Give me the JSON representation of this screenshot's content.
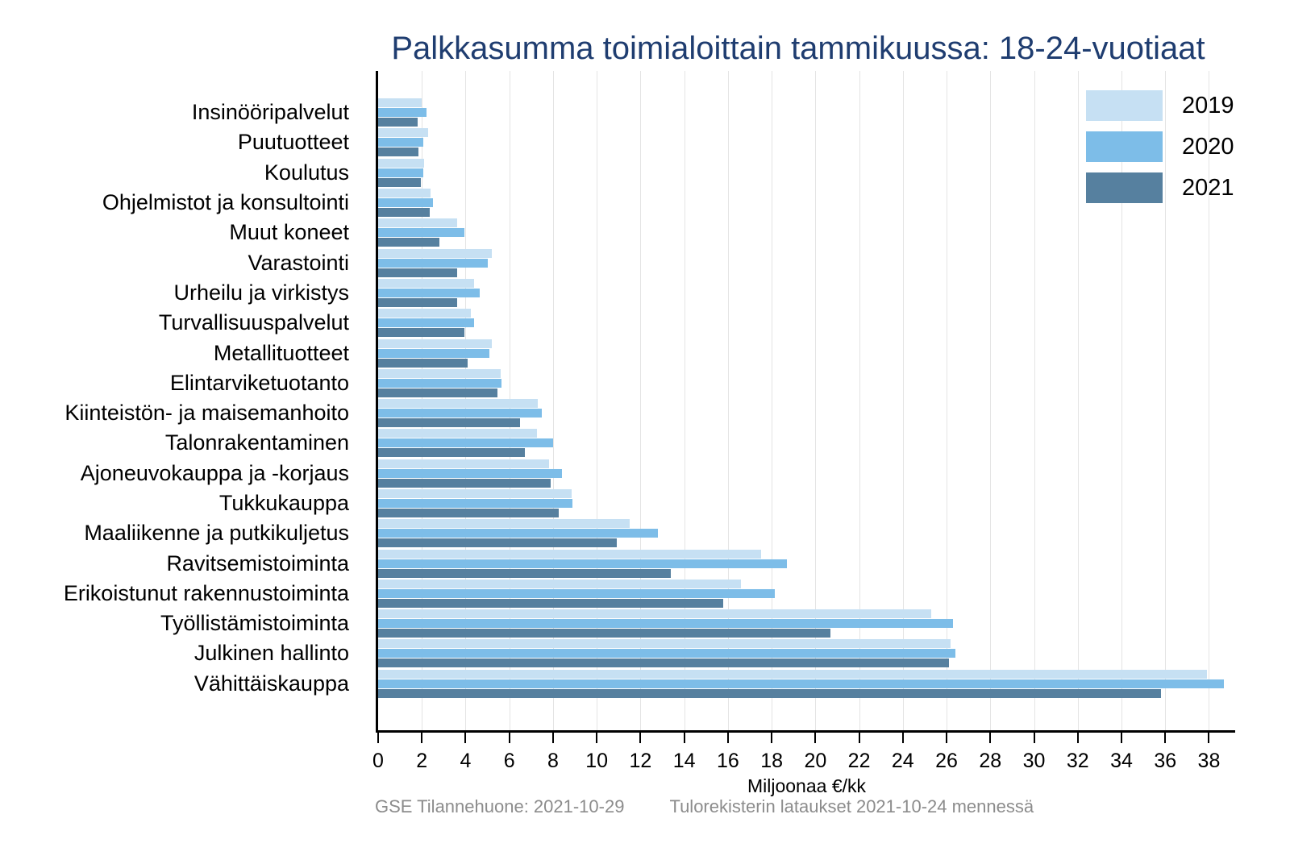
{
  "title": "Palkkasumma toimialoittain tammikuussa: 18-24-vuotiaat",
  "x_axis_label": "Miljoonaa €/kk",
  "footer": {
    "source": "GSE Tilannehuone: 2021-10-29",
    "note": "Tulorekisterin lataukset 2021-10-24 mennessä"
  },
  "colors": {
    "title": "#1f3d70",
    "series_2019": "#c6e0f3",
    "series_2020": "#7dbde8",
    "series_2021": "#56809f",
    "gridline": "#e4e4e4",
    "axis": "#000000",
    "footer_text": "#8c8c8c"
  },
  "legend": {
    "position": "top-right",
    "entries": [
      {
        "label": "2019",
        "color": "#c6e0f3"
      },
      {
        "label": "2020",
        "color": "#7dbde8"
      },
      {
        "label": "2021",
        "color": "#56809f"
      }
    ]
  },
  "chart_data": {
    "type": "bar",
    "orientation": "horizontal",
    "title": "Palkkasumma toimialoittain tammikuussa: 18-24-vuotiaat",
    "xlabel": "Miljoonaa €/kk",
    "ylabel": "",
    "xlim": [
      0,
      39.2
    ],
    "xticks": [
      0,
      2,
      4,
      6,
      8,
      10,
      12,
      14,
      16,
      18,
      20,
      22,
      24,
      26,
      28,
      30,
      32,
      34,
      36,
      38
    ],
    "grid": true,
    "legend_position": "top-right",
    "categories": [
      "Insinööripalvelut",
      "Puutuotteet",
      "Koulutus",
      "Ohjelmistot ja konsultointi",
      "Muut koneet",
      "Varastointi",
      "Urheilu ja virkistys",
      "Turvallisuuspalvelut",
      "Metallituotteet",
      "Elintarviketuotanto",
      "Kiinteistön- ja maisemanhoito",
      "Talonrakentaminen",
      "Ajoneuvokauppa ja -korjaus",
      "Tukkukauppa",
      "Maaliikenne ja putkikuljetus",
      "Ravitsemistoiminta",
      "Erikoistunut rakennustoiminta",
      "Työllistämistoiminta",
      "Julkinen hallinto",
      "Vähittäiskauppa"
    ],
    "series": [
      {
        "name": "2019",
        "color": "#c6e0f3",
        "values": [
          2.0,
          2.3,
          2.1,
          2.4,
          3.6,
          5.2,
          4.4,
          4.25,
          5.2,
          5.6,
          7.3,
          7.25,
          7.8,
          8.85,
          11.5,
          17.5,
          16.6,
          25.3,
          26.2,
          37.9
        ]
      },
      {
        "name": "2020",
        "color": "#7dbde8",
        "values": [
          2.2,
          2.05,
          2.05,
          2.5,
          3.95,
          5.0,
          4.65,
          4.4,
          5.1,
          5.65,
          7.5,
          8.0,
          8.4,
          8.9,
          12.8,
          18.7,
          18.15,
          26.3,
          26.4,
          38.7
        ]
      },
      {
        "name": "2021",
        "color": "#56809f",
        "values": [
          1.8,
          1.85,
          1.95,
          2.35,
          2.8,
          3.6,
          3.6,
          3.95,
          4.1,
          5.45,
          6.5,
          6.7,
          7.9,
          8.25,
          10.9,
          13.4,
          15.8,
          20.7,
          26.1,
          35.8
        ]
      }
    ],
    "units": "Miljoonaa €/kk"
  }
}
